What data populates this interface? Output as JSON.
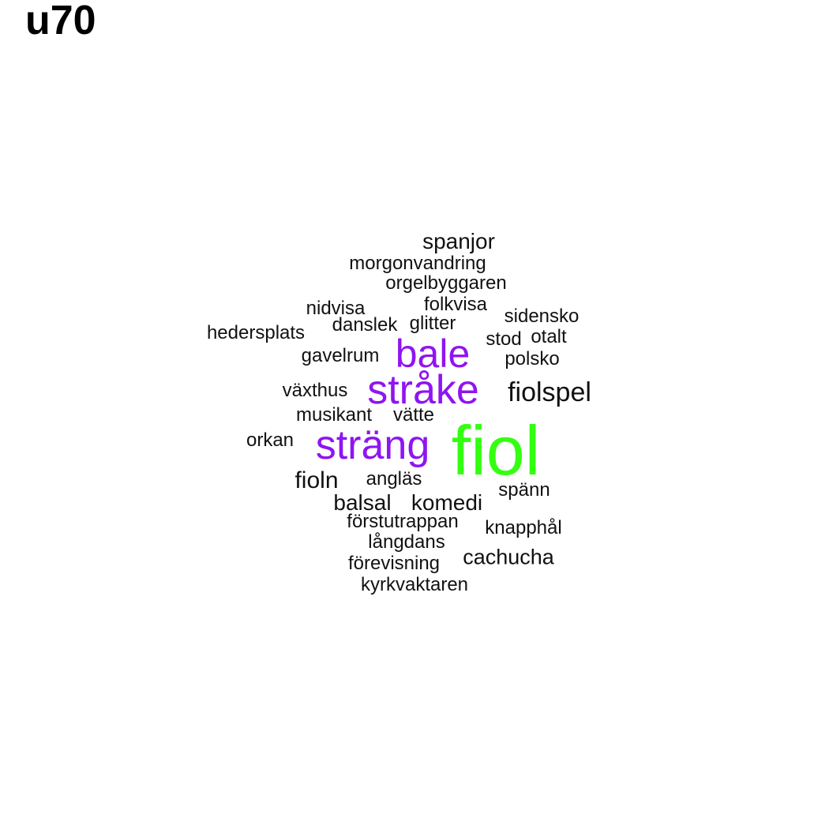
{
  "title": "u70",
  "colors": {
    "top": "#33ff11",
    "high": "#8f14f2",
    "base": "#111111"
  },
  "words": [
    {
      "text": "fiol",
      "weight": "top"
    },
    {
      "text": "sträng",
      "weight": "high"
    },
    {
      "text": "stråke",
      "weight": "high"
    },
    {
      "text": "bale",
      "weight": "high"
    },
    {
      "text": "fiolspel",
      "weight": "base"
    },
    {
      "text": "spanjor",
      "weight": "base"
    },
    {
      "text": "morgonvandring",
      "weight": "base"
    },
    {
      "text": "orgelbyggaren",
      "weight": "base"
    },
    {
      "text": "folkvisa",
      "weight": "base"
    },
    {
      "text": "nidvisa",
      "weight": "base"
    },
    {
      "text": "sidensko",
      "weight": "base"
    },
    {
      "text": "danslek",
      "weight": "base"
    },
    {
      "text": "glitter",
      "weight": "base"
    },
    {
      "text": "hedersplats",
      "weight": "base"
    },
    {
      "text": "stod",
      "weight": "base"
    },
    {
      "text": "otalt",
      "weight": "base"
    },
    {
      "text": "gavelrum",
      "weight": "base"
    },
    {
      "text": "polsko",
      "weight": "base"
    },
    {
      "text": "växthus",
      "weight": "base"
    },
    {
      "text": "musikant",
      "weight": "base"
    },
    {
      "text": "vätte",
      "weight": "base"
    },
    {
      "text": "orkan",
      "weight": "base"
    },
    {
      "text": "fioln",
      "weight": "base"
    },
    {
      "text": "angläs",
      "weight": "base"
    },
    {
      "text": "spänn",
      "weight": "base"
    },
    {
      "text": "balsal",
      "weight": "base"
    },
    {
      "text": "komedi",
      "weight": "base"
    },
    {
      "text": "förstutrappan",
      "weight": "base"
    },
    {
      "text": "knapphål",
      "weight": "base"
    },
    {
      "text": "långdans",
      "weight": "base"
    },
    {
      "text": "cachucha",
      "weight": "base"
    },
    {
      "text": "förevisning",
      "weight": "base"
    },
    {
      "text": "kyrkvaktaren",
      "weight": "base"
    }
  ]
}
